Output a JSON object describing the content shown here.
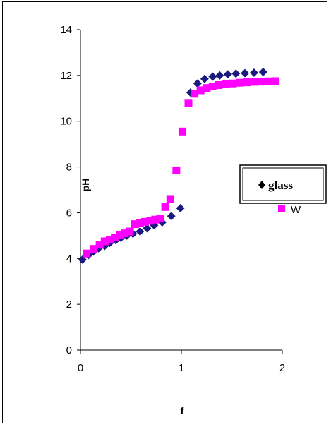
{
  "chart_data": {
    "type": "scatter",
    "title": "",
    "xlabel": "f",
    "ylabel": "pH",
    "xlim": [
      0,
      2
    ],
    "ylim": [
      0,
      14
    ],
    "x_ticks": [
      "0",
      "1",
      "2"
    ],
    "y_ticks": [
      "0",
      "2",
      "4",
      "6",
      "8",
      "10",
      "12",
      "14"
    ],
    "grid": false,
    "legend_position": "right",
    "series": [
      {
        "name": "glass",
        "color": "#1a1a80",
        "marker": "diamond",
        "points": [
          [
            0.02,
            3.95
          ],
          [
            0.08,
            4.15
          ],
          [
            0.13,
            4.3
          ],
          [
            0.18,
            4.45
          ],
          [
            0.24,
            4.55
          ],
          [
            0.29,
            4.68
          ],
          [
            0.35,
            4.8
          ],
          [
            0.4,
            4.9
          ],
          [
            0.46,
            5.0
          ],
          [
            0.52,
            5.08
          ],
          [
            0.59,
            5.18
          ],
          [
            0.66,
            5.32
          ],
          [
            0.73,
            5.45
          ],
          [
            0.81,
            5.58
          ],
          [
            0.9,
            5.85
          ],
          [
            0.99,
            6.2
          ],
          [
            1.09,
            11.25
          ],
          [
            1.16,
            11.65
          ],
          [
            1.23,
            11.85
          ],
          [
            1.31,
            11.95
          ],
          [
            1.38,
            12.0
          ],
          [
            1.46,
            12.05
          ],
          [
            1.54,
            12.08
          ],
          [
            1.63,
            12.1
          ],
          [
            1.72,
            12.12
          ],
          [
            1.81,
            12.15
          ]
        ]
      },
      {
        "name": "W",
        "color": "#ff00ff",
        "marker": "square",
        "points": [
          [
            0.06,
            4.22
          ],
          [
            0.13,
            4.42
          ],
          [
            0.19,
            4.6
          ],
          [
            0.24,
            4.75
          ],
          [
            0.29,
            4.82
          ],
          [
            0.34,
            4.92
          ],
          [
            0.39,
            5.02
          ],
          [
            0.44,
            5.1
          ],
          [
            0.49,
            5.18
          ],
          [
            0.54,
            5.5
          ],
          [
            0.59,
            5.55
          ],
          [
            0.64,
            5.6
          ],
          [
            0.69,
            5.65
          ],
          [
            0.74,
            5.7
          ],
          [
            0.79,
            5.75
          ],
          [
            0.84,
            6.25
          ],
          [
            0.89,
            6.6
          ],
          [
            0.95,
            7.85
          ],
          [
            1.01,
            9.55
          ],
          [
            1.07,
            10.8
          ],
          [
            1.13,
            11.2
          ],
          [
            1.19,
            11.35
          ],
          [
            1.25,
            11.45
          ],
          [
            1.31,
            11.52
          ],
          [
            1.37,
            11.58
          ],
          [
            1.44,
            11.62
          ],
          [
            1.51,
            11.65
          ],
          [
            1.58,
            11.68
          ],
          [
            1.65,
            11.7
          ],
          [
            1.72,
            11.72
          ],
          [
            1.79,
            11.73
          ],
          [
            1.86,
            11.74
          ],
          [
            1.93,
            11.75
          ]
        ]
      }
    ]
  }
}
